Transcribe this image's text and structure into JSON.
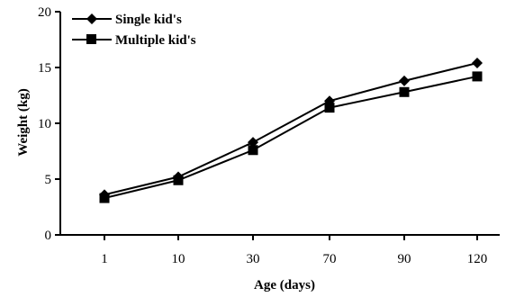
{
  "chart_data": {
    "type": "line",
    "title": "",
    "xlabel": "Age (days)",
    "ylabel": "Weight (kg)",
    "categories": [
      "1",
      "10",
      "30",
      "70",
      "90",
      "120"
    ],
    "ylim": [
      0,
      20
    ],
    "yticks": [
      "0",
      "5",
      "10",
      "15",
      "20"
    ],
    "grid": false,
    "legend_position": "top-left",
    "series": [
      {
        "name": "Single kid's",
        "marker": "diamond",
        "color": "#000000",
        "values": [
          3.6,
          5.2,
          8.3,
          12.0,
          13.8,
          15.4
        ]
      },
      {
        "name": "Multiple kid's",
        "marker": "square",
        "color": "#000000",
        "values": [
          3.3,
          4.9,
          7.6,
          11.4,
          12.8,
          14.2
        ]
      }
    ]
  }
}
